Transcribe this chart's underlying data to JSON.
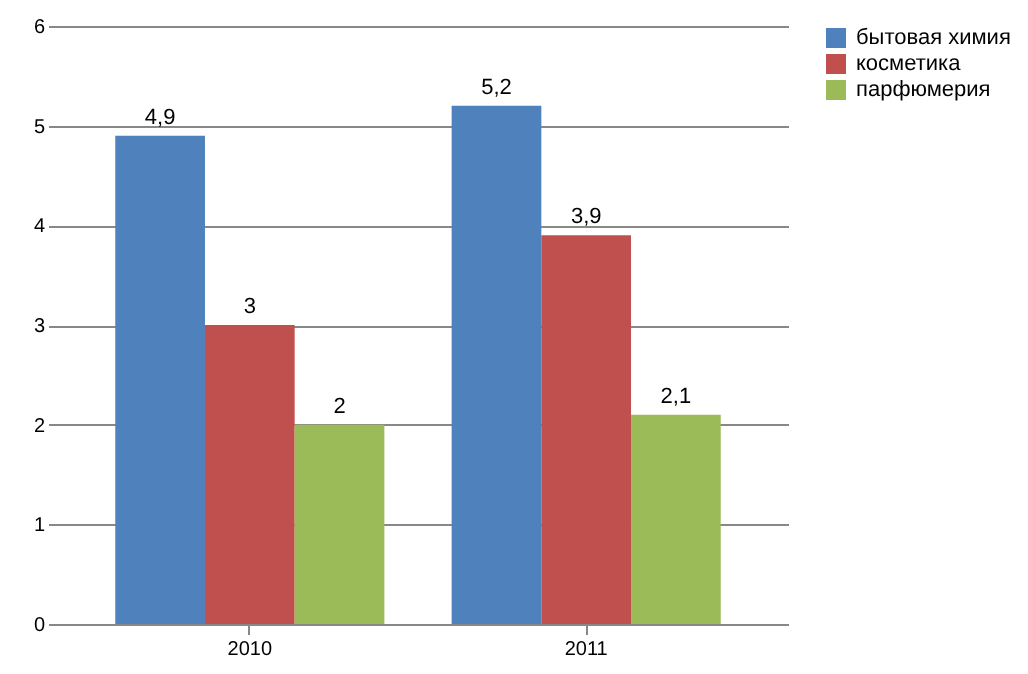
{
  "chart_data": {
    "type": "bar",
    "categories": [
      "2010",
      "2011"
    ],
    "series": [
      {
        "name": "бытовая химия",
        "color": "#4f81bd",
        "values": [
          4.9,
          5.2
        ],
        "value_labels": [
          "4,9",
          "5,2"
        ]
      },
      {
        "name": "косметика",
        "color": "#c0504d",
        "values": [
          3,
          3.9
        ],
        "value_labels": [
          "3",
          "3,9"
        ]
      },
      {
        "name": "парфюмерия",
        "color": "#9bbb59",
        "values": [
          2,
          2.1
        ],
        "value_labels": [
          "2",
          "2,1"
        ]
      }
    ],
    "ylim": [
      0,
      6
    ],
    "yticks": [
      0,
      1,
      2,
      3,
      4,
      5,
      6
    ],
    "grid": "y",
    "legend": "right"
  }
}
